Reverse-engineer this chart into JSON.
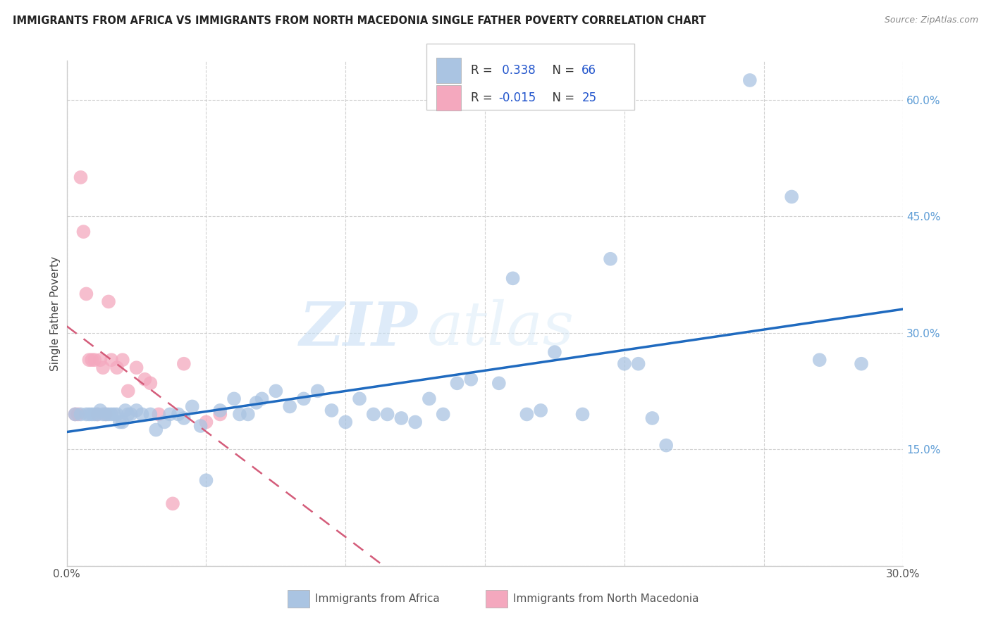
{
  "title": "IMMIGRANTS FROM AFRICA VS IMMIGRANTS FROM NORTH MACEDONIA SINGLE FATHER POVERTY CORRELATION CHART",
  "source": "Source: ZipAtlas.com",
  "xlabel_africa": "Immigrants from Africa",
  "xlabel_macedonia": "Immigrants from North Macedonia",
  "ylabel": "Single Father Poverty",
  "xlim": [
    0.0,
    0.3
  ],
  "ylim": [
    0.0,
    0.65
  ],
  "xticks": [
    0.0,
    0.05,
    0.1,
    0.15,
    0.2,
    0.25,
    0.3
  ],
  "yticks": [
    0.0,
    0.15,
    0.3,
    0.45,
    0.6
  ],
  "ytick_right_labels": [
    "",
    "15.0%",
    "30.0%",
    "45.0%",
    "60.0%"
  ],
  "xtick_labels": [
    "0.0%",
    "",
    "",
    "",
    "",
    "",
    "30.0%"
  ],
  "r_africa": 0.338,
  "n_africa": 66,
  "r_macedonia": -0.015,
  "n_macedonia": 25,
  "africa_color": "#aac4e2",
  "africa_line_color": "#1f6abf",
  "macedonia_color": "#f4a8be",
  "macedonia_line_color": "#d45c7a",
  "watermark_zip": "ZIP",
  "watermark_atlas": "atlas",
  "africa_points_x": [
    0.003,
    0.005,
    0.007,
    0.008,
    0.009,
    0.01,
    0.011,
    0.012,
    0.013,
    0.014,
    0.015,
    0.016,
    0.017,
    0.018,
    0.019,
    0.02,
    0.021,
    0.022,
    0.023,
    0.025,
    0.027,
    0.03,
    0.032,
    0.035,
    0.037,
    0.04,
    0.042,
    0.045,
    0.048,
    0.05,
    0.055,
    0.06,
    0.062,
    0.065,
    0.068,
    0.07,
    0.075,
    0.08,
    0.085,
    0.09,
    0.095,
    0.1,
    0.105,
    0.11,
    0.115,
    0.12,
    0.125,
    0.13,
    0.135,
    0.14,
    0.145,
    0.155,
    0.16,
    0.165,
    0.17,
    0.175,
    0.185,
    0.195,
    0.2,
    0.205,
    0.21,
    0.215,
    0.245,
    0.26,
    0.27,
    0.285
  ],
  "africa_points_y": [
    0.195,
    0.195,
    0.195,
    0.195,
    0.195,
    0.195,
    0.195,
    0.2,
    0.195,
    0.195,
    0.195,
    0.195,
    0.195,
    0.195,
    0.185,
    0.185,
    0.2,
    0.195,
    0.195,
    0.2,
    0.195,
    0.195,
    0.175,
    0.185,
    0.195,
    0.195,
    0.19,
    0.205,
    0.18,
    0.11,
    0.2,
    0.215,
    0.195,
    0.195,
    0.21,
    0.215,
    0.225,
    0.205,
    0.215,
    0.225,
    0.2,
    0.185,
    0.215,
    0.195,
    0.195,
    0.19,
    0.185,
    0.215,
    0.195,
    0.235,
    0.24,
    0.235,
    0.37,
    0.195,
    0.2,
    0.275,
    0.195,
    0.395,
    0.26,
    0.26,
    0.19,
    0.155,
    0.625,
    0.475,
    0.265,
    0.26
  ],
  "macedonia_points_x": [
    0.003,
    0.004,
    0.005,
    0.006,
    0.007,
    0.008,
    0.009,
    0.01,
    0.011,
    0.012,
    0.013,
    0.014,
    0.015,
    0.016,
    0.018,
    0.02,
    0.022,
    0.025,
    0.028,
    0.03,
    0.033,
    0.038,
    0.042,
    0.05,
    0.055
  ],
  "macedonia_points_y": [
    0.195,
    0.195,
    0.5,
    0.43,
    0.35,
    0.265,
    0.265,
    0.265,
    0.195,
    0.265,
    0.255,
    0.195,
    0.34,
    0.265,
    0.255,
    0.265,
    0.225,
    0.255,
    0.24,
    0.235,
    0.195,
    0.08,
    0.26,
    0.185,
    0.195
  ]
}
